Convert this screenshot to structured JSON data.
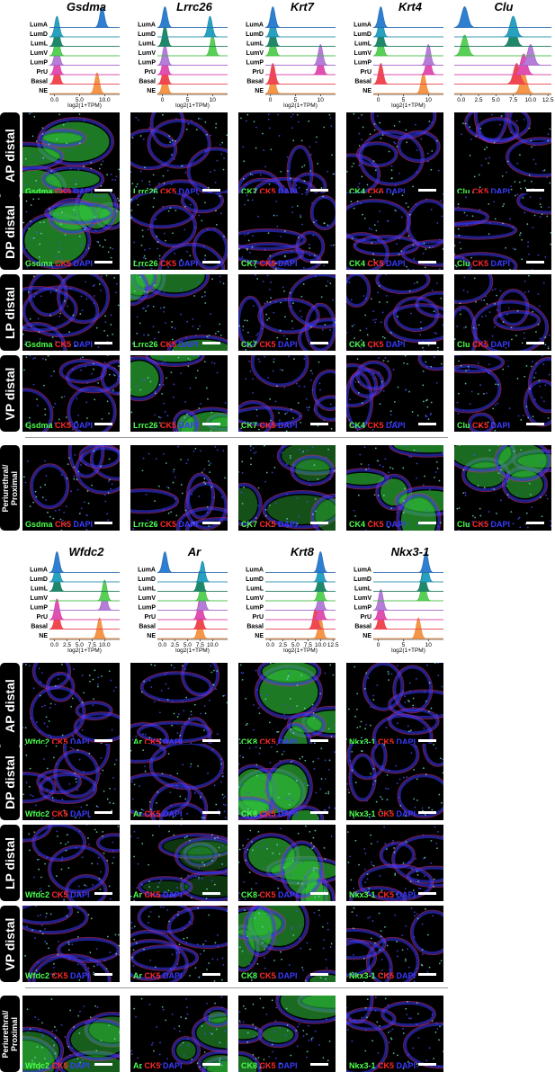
{
  "top_block": {
    "genes": [
      "Gsdma",
      "Lrrc26",
      "Krt7",
      "Krt4",
      "Clu"
    ],
    "rows": [
      "AP distal",
      "DP distal",
      "LP distal",
      "VP distal",
      "Periurethral/ Proximal"
    ],
    "markers": [
      "Gsdma",
      "Lrrc26",
      "CK7",
      "CK4",
      "Clu"
    ]
  },
  "bottom_block": {
    "genes": [
      "Wfdc2",
      "Ar",
      "Krt8",
      "Nkx3-1"
    ],
    "rows": [
      "AP distal",
      "DP distal",
      "LP distal",
      "VP distal",
      "Periurethral/ Proximal"
    ],
    "markers": [
      "Wfdc2",
      "Ar",
      "CK8",
      "Nkx3-1"
    ]
  },
  "caption_stains": {
    "red": "CK5",
    "blue": "DAPI"
  },
  "colors": {
    "green": "#4cff4c",
    "red": "#ff2a2a",
    "blue": "#3a3aff"
  },
  "chart_data": [
    {
      "type": "ridgeline",
      "title": "Gsdma",
      "xlabel": "log2(1+TPM)",
      "xticks": [
        "0.0",
        "5.0",
        "10.0"
      ],
      "categories": [
        "LumA",
        "LumD",
        "LumL",
        "LumV",
        "LumP",
        "PrU",
        "Basal",
        "NE"
      ],
      "peaks": [
        9.5,
        0.5,
        0.5,
        0.5,
        0.5,
        0.5,
        0.5,
        8.5
      ],
      "xlim": [
        -1,
        13
      ]
    },
    {
      "type": "ridgeline",
      "title": "Lrrc26",
      "xlabel": "log2(1+TPM)",
      "xticks": [
        "0",
        "5",
        "10"
      ],
      "categories": [
        "LumA",
        "LumD",
        "LumL",
        "LumV",
        "LumP",
        "PrU",
        "Basal",
        "NE"
      ],
      "peaks": [
        0.5,
        9.5,
        0.5,
        10,
        0.5,
        0.5,
        0.5,
        0.5
      ],
      "xlim": [
        -1,
        13
      ]
    },
    {
      "type": "ridgeline",
      "title": "Krt7",
      "xlabel": "log2(1+TPM)",
      "xticks": [
        "0",
        "5",
        "10"
      ],
      "categories": [
        "LumA",
        "LumD",
        "LumL",
        "LumV",
        "LumP",
        "PrU",
        "Basal",
        "NE"
      ],
      "peaks": [
        0.5,
        0.5,
        0.5,
        0.5,
        10,
        10,
        0.5,
        0.5
      ],
      "xlim": [
        -1,
        13
      ]
    },
    {
      "type": "ridgeline",
      "title": "Krt4",
      "xlabel": "log2(1+TPM)",
      "xticks": [
        "0",
        "5",
        "10"
      ],
      "categories": [
        "LumA",
        "LumD",
        "LumL",
        "LumV",
        "LumP",
        "PrU",
        "Basal",
        "NE"
      ],
      "peaks": [
        0.5,
        0.5,
        0.5,
        0.5,
        10,
        10,
        0.5,
        9
      ],
      "xlim": [
        -1,
        13
      ]
    },
    {
      "type": "ridgeline",
      "title": "Clu",
      "xlabel": "",
      "xticks": [
        "0.0",
        "2.5",
        "5.0",
        "7.5",
        "10.0",
        "12.5"
      ],
      "categories": [],
      "peaks": [
        0.5,
        7.5,
        7.5,
        0.5,
        10,
        9,
        8,
        9
      ],
      "xlim": [
        -1,
        13
      ]
    },
    {
      "type": "ridgeline",
      "title": "Wfdc2",
      "xlabel": "log2(1+TPM)",
      "xticks": [
        "0.0",
        "2.5",
        "5.0",
        "7.5",
        "10.0"
      ],
      "categories": [
        "LumA",
        "LumD",
        "LumL",
        "LumV",
        "LumP",
        "PrU",
        "Basal",
        "NE"
      ],
      "peaks": [
        0.5,
        0.5,
        0.5,
        10,
        10,
        0.5,
        0.5,
        9
      ],
      "xlim": [
        -1,
        13
      ]
    },
    {
      "type": "ridgeline",
      "title": "Ar",
      "xlabel": "log2(1+TPM)",
      "xticks": [
        "0.0",
        "2.5",
        "5.0",
        "7.5",
        "10.0"
      ],
      "categories": [
        "LumA",
        "LumD",
        "LumL",
        "LumV",
        "LumP",
        "PrU",
        "Basal",
        "NE"
      ],
      "peaks": [
        0.5,
        8,
        7.5,
        8,
        8,
        7.5,
        7.5,
        7.5
      ],
      "xlim": [
        -1,
        13
      ]
    },
    {
      "type": "ridgeline",
      "title": "Krt8",
      "xlabel": "log2(1+TPM)",
      "xticks": [
        "0.0",
        "2.5",
        "5.0",
        "7.5",
        "10.0",
        "12.5"
      ],
      "categories": [
        "LumA",
        "LumD",
        "LumL",
        "LumV",
        "LumP",
        "PrU",
        "Basal",
        "NE"
      ],
      "peaks": [
        10,
        10,
        10,
        10,
        10,
        10,
        9,
        10
      ],
      "xlim": [
        -1,
        13
      ]
    },
    {
      "type": "ridgeline",
      "title": "Nkx3-1",
      "xlabel": "log2(1+TPM)",
      "xticks": [
        "0",
        "5",
        "10"
      ],
      "categories": [
        "LumA",
        "LumD",
        "LumL",
        "LumV",
        "LumP",
        "PrU",
        "Basal",
        "NE"
      ],
      "peaks": [
        9.5,
        9.5,
        9,
        9,
        0.5,
        0.5,
        0.5,
        8
      ],
      "xlim": [
        -1,
        13
      ]
    }
  ]
}
